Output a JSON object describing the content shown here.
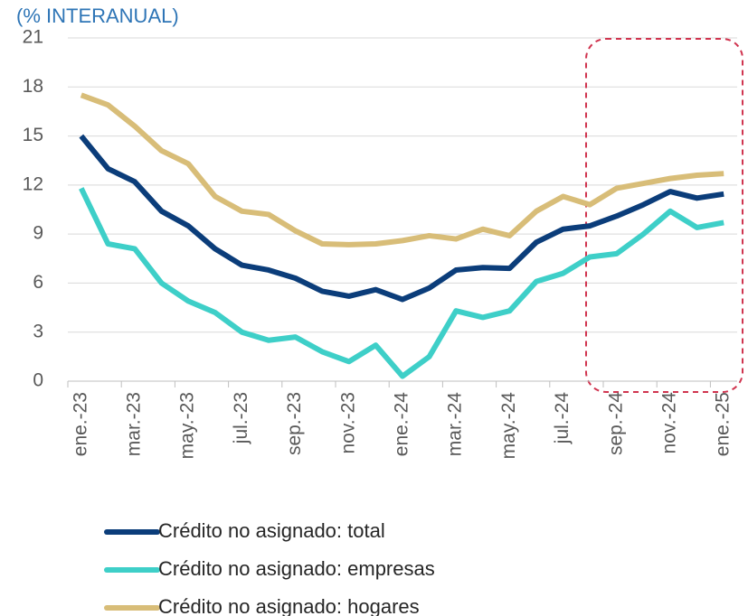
{
  "chart_data": {
    "type": "line",
    "title": "(% INTERANUAL)",
    "categories": [
      "ene.-23",
      null,
      "mar.-23",
      null,
      "may.-23",
      null,
      "jul.-23",
      null,
      "sep.-23",
      null,
      "nov.-23",
      null,
      "ene.-24",
      null,
      "mar.-24",
      null,
      "may.-24",
      null,
      "jul.-24",
      null,
      "sep.-24",
      null,
      "nov.-24",
      null,
      "ene.-25"
    ],
    "series": [
      {
        "name": "Crédito no asignado: total",
        "color": "#0b3d7a",
        "values": [
          15.0,
          13.0,
          12.2,
          10.4,
          9.5,
          8.1,
          7.1,
          6.8,
          6.3,
          5.5,
          5.2,
          5.6,
          5.0,
          5.7,
          6.8,
          6.95,
          6.9,
          8.5,
          9.3,
          9.5,
          10.1,
          10.8,
          11.6,
          11.2,
          11.45
        ]
      },
      {
        "name": "Crédito no asignado: empresas",
        "color": "#3ecfc8",
        "values": [
          11.8,
          8.4,
          8.1,
          6.0,
          4.9,
          4.2,
          3.0,
          2.5,
          2.7,
          1.8,
          1.2,
          2.2,
          0.3,
          1.5,
          4.3,
          3.9,
          4.3,
          6.1,
          6.6,
          7.6,
          7.8,
          9.0,
          10.4,
          9.4,
          9.7
        ]
      },
      {
        "name": "Crédito no asignado: hogares",
        "color": "#d8bd78",
        "values": [
          17.5,
          16.9,
          15.6,
          14.1,
          13.3,
          11.3,
          10.4,
          10.2,
          9.2,
          8.4,
          8.35,
          8.4,
          8.6,
          8.9,
          8.7,
          9.3,
          8.9,
          10.4,
          11.3,
          10.8,
          11.8,
          12.1,
          12.4,
          12.6,
          12.7
        ]
      }
    ],
    "ylim": [
      0,
      21
    ],
    "yticks": [
      0,
      3,
      6,
      9,
      12,
      15,
      18,
      21
    ],
    "grid": true
  }
}
